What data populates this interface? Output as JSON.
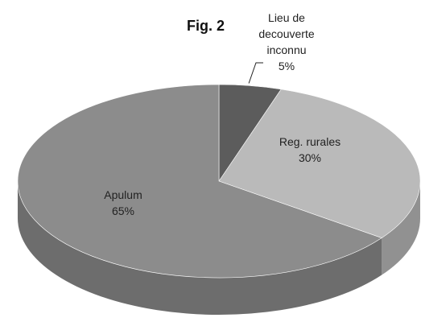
{
  "chart_data": {
    "type": "pie",
    "title": "Fig. 2",
    "categories": [
      "Lieu de decouverte inconnu",
      "Reg. rurales",
      "Apulum"
    ],
    "values": [
      5,
      30,
      65
    ],
    "value_labels": [
      "5%",
      "30%",
      "65%"
    ],
    "colors": [
      "#5c5c5c",
      "#bababa",
      "#8c8c8c"
    ],
    "three_d": true
  }
}
